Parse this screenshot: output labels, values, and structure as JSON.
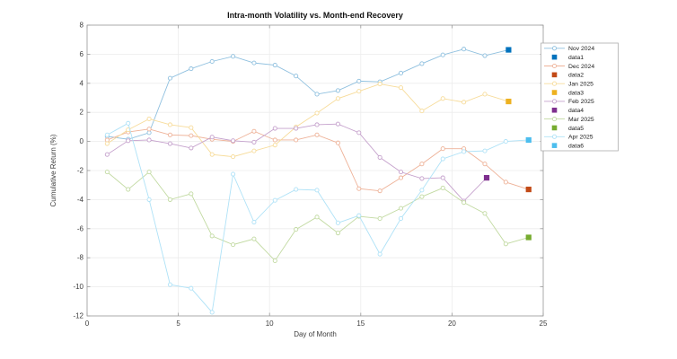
{
  "chart_data": {
    "type": "line",
    "title": "Intra-month Volatility vs. Month-end Recovery",
    "xlabel": "Day of Month",
    "ylabel": "Cumulative Return (%)",
    "xlim": [
      0,
      25
    ],
    "ylim": [
      -12,
      8
    ],
    "xticks": [
      0,
      5,
      10,
      15,
      20,
      25
    ],
    "yticks": [
      -12,
      -10,
      -8,
      -6,
      -4,
      -2,
      0,
      2,
      4,
      6,
      8
    ],
    "grid": true,
    "legend_position": "outside-right",
    "axis_color": "#9a9a9a",
    "grid_color": "#ececec",
    "series": [
      {
        "name": "Nov 2024",
        "end_name": "data1",
        "line_color": "#8FC0DF",
        "end_color": "#0072BD",
        "x": [
          1.1,
          2.25,
          3.4,
          4.55,
          5.7,
          6.85,
          8.0,
          9.15,
          10.3,
          11.45,
          12.6,
          13.75,
          14.9,
          16.05,
          17.2,
          18.35,
          19.5,
          20.65,
          21.8
        ],
        "y": [
          0.35,
          0.15,
          0.6,
          4.35,
          5.0,
          5.5,
          5.85,
          5.4,
          5.25,
          4.5,
          3.25,
          3.5,
          4.15,
          4.1,
          4.7,
          5.35,
          5.95,
          6.35,
          5.9
        ],
        "end_point": {
          "x": 23.1,
          "y": 6.3
        }
      },
      {
        "name": "Dec 2024",
        "end_name": "data2",
        "line_color": "#EEB298",
        "end_color": "#C24A17",
        "x": [
          1.1,
          2.25,
          3.4,
          4.55,
          5.7,
          6.85,
          8.0,
          9.15,
          10.3,
          11.45,
          12.6,
          13.75,
          14.9,
          16.05,
          17.2,
          18.35,
          19.5,
          20.65,
          21.8,
          22.95
        ],
        "y": [
          0.1,
          0.65,
          0.85,
          0.45,
          0.4,
          0.15,
          0.0,
          0.7,
          0.1,
          0.1,
          0.45,
          -0.1,
          -3.25,
          -3.4,
          -2.5,
          -1.55,
          -0.5,
          -0.5,
          -1.55,
          -2.8
        ],
        "end_point": {
          "x": 24.2,
          "y": -3.3
        }
      },
      {
        "name": "Jan 2025",
        "end_name": "data3",
        "line_color": "#F7DC9B",
        "end_color": "#EDB120",
        "x": [
          1.1,
          2.25,
          3.4,
          4.55,
          5.7,
          6.85,
          8.0,
          9.15,
          10.3,
          11.45,
          12.6,
          13.75,
          14.9,
          16.05,
          17.2,
          18.35,
          19.5,
          20.65,
          21.8
        ],
        "y": [
          -0.15,
          0.8,
          1.55,
          1.15,
          0.95,
          -0.9,
          -1.05,
          -0.65,
          -0.25,
          1.0,
          1.95,
          2.95,
          3.45,
          3.95,
          3.7,
          2.1,
          2.95,
          2.7,
          3.25
        ],
        "end_point": {
          "x": 23.1,
          "y": 2.75
        }
      },
      {
        "name": "Feb 2025",
        "end_name": "data4",
        "line_color": "#C5A1CC",
        "end_color": "#7E2F8E",
        "x": [
          1.1,
          2.25,
          3.4,
          4.55,
          5.7,
          6.85,
          8.0,
          9.15,
          10.3,
          11.45,
          12.6,
          13.75,
          14.9,
          16.05,
          17.2,
          18.35,
          19.5,
          20.65
        ],
        "y": [
          -0.9,
          0.05,
          0.1,
          -0.15,
          -0.45,
          0.3,
          0.05,
          -0.05,
          0.9,
          0.9,
          1.15,
          1.2,
          0.6,
          -1.1,
          -2.1,
          -2.55,
          -2.5,
          -4.1
        ],
        "end_point": {
          "x": 21.9,
          "y": -2.5
        }
      },
      {
        "name": "Mar 2025",
        "end_name": "data5",
        "line_color": "#C2DAA2",
        "end_color": "#77AC30",
        "x": [
          1.1,
          2.25,
          3.4,
          4.55,
          5.7,
          6.85,
          8.0,
          9.15,
          10.3,
          11.45,
          12.6,
          13.75,
          14.9,
          16.05,
          17.2,
          18.35,
          19.5,
          20.65,
          21.8,
          22.95
        ],
        "y": [
          -2.1,
          -3.3,
          -2.1,
          -4.0,
          -3.6,
          -6.5,
          -7.1,
          -6.7,
          -8.2,
          -6.05,
          -5.2,
          -6.3,
          -5.15,
          -5.3,
          -4.6,
          -3.8,
          -3.2,
          -4.2,
          -4.95,
          -7.05
        ],
        "end_point": {
          "x": 24.2,
          "y": -6.6
        }
      },
      {
        "name": "Apr 2025",
        "end_name": "data6",
        "line_color": "#AFE2F7",
        "end_color": "#4DBEEE",
        "x": [
          1.1,
          2.25,
          3.4,
          4.55,
          5.7,
          6.85,
          8.0,
          9.15,
          10.3,
          11.45,
          12.6,
          13.75,
          14.9,
          16.05,
          17.2,
          18.35,
          19.5,
          20.65,
          21.8,
          22.95
        ],
        "y": [
          0.45,
          1.25,
          -4.0,
          -9.85,
          -10.1,
          -11.75,
          -2.25,
          -5.55,
          -4.05,
          -3.3,
          -3.35,
          -5.6,
          -5.1,
          -7.75,
          -5.3,
          -3.35,
          -1.2,
          -0.7,
          -0.65,
          0.0
        ],
        "end_point": {
          "x": 24.2,
          "y": 0.1
        }
      }
    ]
  }
}
